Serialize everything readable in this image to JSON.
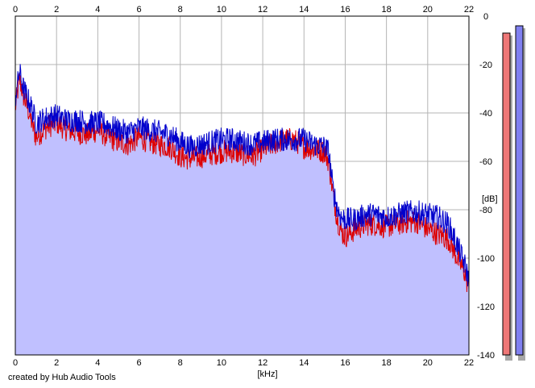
{
  "chart_data": {
    "type": "area",
    "xlabel": "[kHz]",
    "ylabel": "[dB]",
    "xlim": [
      0,
      22
    ],
    "ylim": [
      -140,
      0
    ],
    "x_ticks": [
      "0",
      "2",
      "4",
      "6",
      "8",
      "10",
      "12",
      "14",
      "16",
      "18",
      "20",
      "22"
    ],
    "y_ticks": [
      "0",
      "-20",
      "-40",
      "-60",
      "-80",
      "-100",
      "-120",
      "-140"
    ],
    "grid": true,
    "series": [
      {
        "color": "#dd0000",
        "x": [
          0,
          0.2,
          0.4,
          0.6,
          0.8,
          1,
          1.5,
          2,
          2.5,
          3,
          3.5,
          4,
          4.5,
          5,
          5.5,
          6,
          6.5,
          7,
          7.5,
          8,
          8.5,
          9,
          9.5,
          10,
          10.5,
          11,
          11.5,
          12,
          12.5,
          13,
          13.5,
          14,
          14.5,
          15,
          15.2,
          15.4,
          15.6,
          15.8,
          16,
          16.5,
          17,
          17.5,
          18,
          18.5,
          19,
          19.5,
          20,
          20.5,
          21,
          21.5,
          21.8,
          22
        ],
        "values": [
          -38,
          -26,
          -33,
          -38,
          -44,
          -50,
          -46,
          -44,
          -47,
          -48,
          -49,
          -47,
          -50,
          -52,
          -53,
          -50,
          -52,
          -53,
          -54,
          -58,
          -59,
          -58,
          -57,
          -56,
          -56,
          -57,
          -58,
          -55,
          -53,
          -51,
          -51,
          -54,
          -55,
          -56,
          -60,
          -73,
          -83,
          -89,
          -91,
          -88,
          -86,
          -86,
          -87,
          -86,
          -85,
          -85,
          -88,
          -90,
          -92,
          -101,
          -106,
          -113
        ]
      },
      {
        "color": "#0000cc",
        "x": [
          0,
          0.2,
          0.4,
          0.6,
          0.8,
          1,
          1.5,
          2,
          2.5,
          3,
          3.5,
          4,
          4.5,
          5,
          5.5,
          6,
          6.5,
          7,
          7.5,
          8,
          8.5,
          9,
          9.5,
          10,
          10.5,
          11,
          11.5,
          12,
          12.5,
          13,
          13.5,
          14,
          14.5,
          15,
          15.2,
          15.4,
          15.6,
          15.8,
          16,
          16.5,
          17,
          17.5,
          18,
          18.5,
          19,
          19.5,
          20,
          20.5,
          21,
          21.5,
          21.8,
          22
        ],
        "values": [
          -34,
          -23,
          -30,
          -34,
          -38,
          -44,
          -42,
          -41,
          -43,
          -43,
          -44,
          -44,
          -45,
          -47,
          -48,
          -46,
          -47,
          -48,
          -49,
          -52,
          -54,
          -53,
          -52,
          -51,
          -51,
          -52,
          -53,
          -52,
          -51,
          -51,
          -51,
          -51,
          -53,
          -54,
          -56,
          -71,
          -79,
          -83,
          -84,
          -84,
          -82,
          -82,
          -83,
          -82,
          -81,
          -81,
          -82,
          -83,
          -86,
          -96,
          -103,
          -109
        ]
      }
    ],
    "fill_color": "#c0c0ff",
    "level_meters": [
      {
        "color": "#ee7777",
        "level": -7
      },
      {
        "color": "#8080f0",
        "level": -4
      }
    ]
  },
  "credit": "created by Hub Audio Tools"
}
